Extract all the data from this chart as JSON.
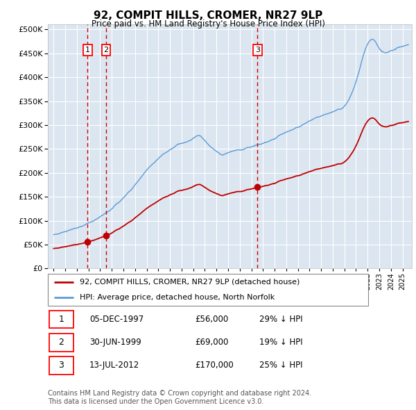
{
  "title": "92, COMPIT HILLS, CROMER, NR27 9LP",
  "subtitle": "Price paid vs. HM Land Registry's House Price Index (HPI)",
  "ylim": [
    0,
    510000
  ],
  "xlim_start": 1994.5,
  "xlim_end": 2025.8,
  "bg_color": "#dce6f1",
  "grid_color": "#ffffff",
  "hpi_line_color": "#5b9bd5",
  "price_line_color": "#c00000",
  "sale_dot_color": "#c00000",
  "vline_color": "#cc0000",
  "transactions": [
    {
      "date_num": 1997.92,
      "price": 56000,
      "label": "1"
    },
    {
      "date_num": 1999.5,
      "price": 69000,
      "label": "2"
    },
    {
      "date_num": 2012.53,
      "price": 170000,
      "label": "3"
    }
  ],
  "legend_property_label": "92, COMPIT HILLS, CROMER, NR27 9LP (detached house)",
  "legend_hpi_label": "HPI: Average price, detached house, North Norfolk",
  "table_rows": [
    {
      "num": "1",
      "date": "05-DEC-1997",
      "price": "£56,000",
      "pct": "29% ↓ HPI"
    },
    {
      "num": "2",
      "date": "30-JUN-1999",
      "price": "£69,000",
      "pct": "19% ↓ HPI"
    },
    {
      "num": "3",
      "date": "13-JUL-2012",
      "price": "£170,000",
      "pct": "25% ↓ HPI"
    }
  ],
  "footnote": "Contains HM Land Registry data © Crown copyright and database right 2024.\nThis data is licensed under the Open Government Licence v3.0."
}
